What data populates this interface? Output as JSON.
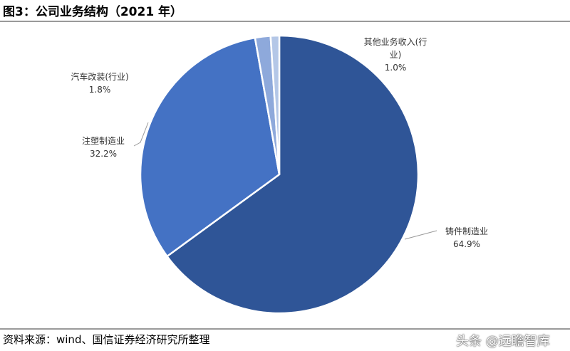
{
  "title": "图3：公司业务结构（2021 年）",
  "source": "资料来源：wind、国信证券经济研究所整理",
  "watermark": "头条 @远瞻智库",
  "chart_data": {
    "type": "pie",
    "title": "图3：公司业务结构（2021 年）",
    "start": "12 o'clock, clockwise",
    "slices": [
      {
        "name_lines": [
          "铸件制造业"
        ],
        "percent_label": "64.9%",
        "value": 64.9,
        "color": "#2f5597"
      },
      {
        "name_lines": [
          "注塑制造业"
        ],
        "percent_label": "32.2%",
        "value": 32.2,
        "color": "#4472c4"
      },
      {
        "name_lines": [
          "汽车改装(行业)"
        ],
        "percent_label": "1.8%",
        "value": 1.8,
        "color": "#8ea9db"
      },
      {
        "name_lines": [
          "其他业务收入(行",
          "业)"
        ],
        "percent_label": "1.0%",
        "value": 1.0,
        "color": "#b4c7e7"
      }
    ]
  }
}
